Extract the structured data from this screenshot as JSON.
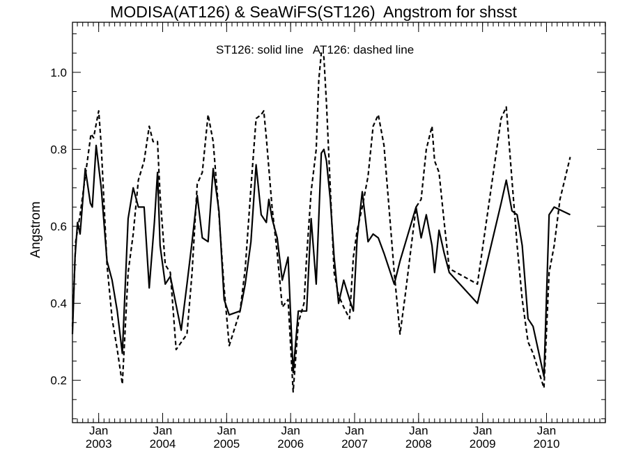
{
  "chart_data": {
    "type": "line",
    "title": "MODISA(AT126) & SeaWiFS(ST126)  Angstrom for shsst",
    "annotation": "ST126: solid line   AT126: dashed line",
    "ylabel": "Angstrom",
    "xlabel": "",
    "xlim": [
      2002.59,
      2010.92
    ],
    "ylim": [
      0.09,
      1.13
    ],
    "yticks": [
      0.2,
      0.4,
      0.6,
      0.8,
      1.0
    ],
    "yticklabels": [
      "0.2",
      "0.4",
      "0.6",
      "0.8",
      "1.0"
    ],
    "xticks": [
      {
        "x": 2003.0,
        "month": "Jan",
        "year": "2003"
      },
      {
        "x": 2004.0,
        "month": "Jan",
        "year": "2004"
      },
      {
        "x": 2005.0,
        "month": "Jan",
        "year": "2005"
      },
      {
        "x": 2006.0,
        "month": "Jan",
        "year": "2006"
      },
      {
        "x": 2007.0,
        "month": "Jan",
        "year": "2007"
      },
      {
        "x": 2008.0,
        "month": "Jan",
        "year": "2008"
      },
      {
        "x": 2009.0,
        "month": "Jan",
        "year": "2009"
      },
      {
        "x": 2010.0,
        "month": "Jan",
        "year": "2010"
      }
    ],
    "series": [
      {
        "name": "ST126",
        "style": "solid",
        "color": "#000000",
        "points": [
          [
            2002.59,
            0.32
          ],
          [
            2002.63,
            0.52
          ],
          [
            2002.67,
            0.61
          ],
          [
            2002.71,
            0.58
          ],
          [
            2002.79,
            0.75
          ],
          [
            2002.87,
            0.66
          ],
          [
            2002.9,
            0.65
          ],
          [
            2002.96,
            0.81
          ],
          [
            2003.04,
            0.7
          ],
          [
            2003.13,
            0.51
          ],
          [
            2003.21,
            0.46
          ],
          [
            2003.29,
            0.38
          ],
          [
            2003.37,
            0.27
          ],
          [
            2003.46,
            0.62
          ],
          [
            2003.54,
            0.7
          ],
          [
            2003.62,
            0.65
          ],
          [
            2003.71,
            0.65
          ],
          [
            2003.79,
            0.44
          ],
          [
            2003.87,
            0.61
          ],
          [
            2003.92,
            0.74
          ],
          [
            2003.96,
            0.55
          ],
          [
            2004.04,
            0.45
          ],
          [
            2004.12,
            0.47
          ],
          [
            2004.29,
            0.33
          ],
          [
            2004.38,
            0.45
          ],
          [
            2004.46,
            0.56
          ],
          [
            2004.54,
            0.68
          ],
          [
            2004.62,
            0.57
          ],
          [
            2004.71,
            0.56
          ],
          [
            2004.79,
            0.75
          ],
          [
            2004.88,
            0.64
          ],
          [
            2004.96,
            0.41
          ],
          [
            2005.04,
            0.37
          ],
          [
            2005.21,
            0.38
          ],
          [
            2005.29,
            0.45
          ],
          [
            2005.38,
            0.56
          ],
          [
            2005.46,
            0.76
          ],
          [
            2005.54,
            0.63
          ],
          [
            2005.62,
            0.61
          ],
          [
            2005.66,
            0.67
          ],
          [
            2005.71,
            0.62
          ],
          [
            2005.79,
            0.57
          ],
          [
            2005.87,
            0.46
          ],
          [
            2005.96,
            0.52
          ],
          [
            2006.04,
            0.22
          ],
          [
            2006.12,
            0.38
          ],
          [
            2006.21,
            0.38
          ],
          [
            2006.25,
            0.38
          ],
          [
            2006.32,
            0.62
          ],
          [
            2006.4,
            0.45
          ],
          [
            2006.48,
            0.79
          ],
          [
            2006.52,
            0.8
          ],
          [
            2006.56,
            0.77
          ],
          [
            2006.62,
            0.67
          ],
          [
            2006.68,
            0.52
          ],
          [
            2006.75,
            0.4
          ],
          [
            2006.83,
            0.46
          ],
          [
            2006.92,
            0.41
          ],
          [
            2006.98,
            0.38
          ],
          [
            2007.04,
            0.57
          ],
          [
            2007.12,
            0.69
          ],
          [
            2007.21,
            0.56
          ],
          [
            2007.29,
            0.58
          ],
          [
            2007.37,
            0.57
          ],
          [
            2007.46,
            0.53
          ],
          [
            2007.62,
            0.45
          ],
          [
            2007.71,
            0.51
          ],
          [
            2007.96,
            0.65
          ],
          [
            2008.04,
            0.57
          ],
          [
            2008.12,
            0.63
          ],
          [
            2008.21,
            0.55
          ],
          [
            2008.25,
            0.48
          ],
          [
            2008.32,
            0.59
          ],
          [
            2008.4,
            0.53
          ],
          [
            2008.48,
            0.48
          ],
          [
            2008.92,
            0.4
          ],
          [
            2009.29,
            0.66
          ],
          [
            2009.37,
            0.72
          ],
          [
            2009.46,
            0.64
          ],
          [
            2009.54,
            0.63
          ],
          [
            2009.62,
            0.55
          ],
          [
            2009.71,
            0.36
          ],
          [
            2009.79,
            0.34
          ],
          [
            2009.96,
            0.21
          ],
          [
            2010.04,
            0.63
          ],
          [
            2010.12,
            0.65
          ],
          [
            2010.37,
            0.63
          ]
        ]
      },
      {
        "name": "AT126",
        "style": "dashed",
        "color": "#000000",
        "points": [
          [
            2002.59,
            0.34
          ],
          [
            2002.64,
            0.56
          ],
          [
            2002.71,
            0.63
          ],
          [
            2002.79,
            0.73
          ],
          [
            2002.88,
            0.84
          ],
          [
            2002.92,
            0.83
          ],
          [
            2003.0,
            0.9
          ],
          [
            2003.04,
            0.81
          ],
          [
            2003.13,
            0.5
          ],
          [
            2003.21,
            0.36
          ],
          [
            2003.29,
            0.28
          ],
          [
            2003.37,
            0.19
          ],
          [
            2003.46,
            0.48
          ],
          [
            2003.54,
            0.58
          ],
          [
            2003.62,
            0.72
          ],
          [
            2003.71,
            0.77
          ],
          [
            2003.79,
            0.86
          ],
          [
            2003.85,
            0.82
          ],
          [
            2003.92,
            0.82
          ],
          [
            2003.96,
            0.68
          ],
          [
            2004.04,
            0.5
          ],
          [
            2004.12,
            0.48
          ],
          [
            2004.21,
            0.28
          ],
          [
            2004.38,
            0.32
          ],
          [
            2004.46,
            0.48
          ],
          [
            2004.54,
            0.71
          ],
          [
            2004.62,
            0.74
          ],
          [
            2004.71,
            0.89
          ],
          [
            2004.79,
            0.82
          ],
          [
            2004.88,
            0.63
          ],
          [
            2004.96,
            0.44
          ],
          [
            2005.04,
            0.29
          ],
          [
            2005.21,
            0.38
          ],
          [
            2005.29,
            0.49
          ],
          [
            2005.38,
            0.7
          ],
          [
            2005.46,
            0.88
          ],
          [
            2005.54,
            0.89
          ],
          [
            2005.58,
            0.9
          ],
          [
            2005.62,
            0.83
          ],
          [
            2005.71,
            0.65
          ],
          [
            2005.79,
            0.53
          ],
          [
            2005.87,
            0.39
          ],
          [
            2005.96,
            0.41
          ],
          [
            2006.04,
            0.17
          ],
          [
            2006.12,
            0.35
          ],
          [
            2006.21,
            0.4
          ],
          [
            2006.25,
            0.52
          ],
          [
            2006.32,
            0.69
          ],
          [
            2006.4,
            0.8
          ],
          [
            2006.44,
            0.98
          ],
          [
            2006.48,
            1.05
          ],
          [
            2006.52,
            1.04
          ],
          [
            2006.56,
            0.92
          ],
          [
            2006.62,
            0.7
          ],
          [
            2006.68,
            0.48
          ],
          [
            2006.75,
            0.42
          ],
          [
            2006.83,
            0.39
          ],
          [
            2006.92,
            0.36
          ],
          [
            2006.98,
            0.52
          ],
          [
            2007.04,
            0.59
          ],
          [
            2007.12,
            0.65
          ],
          [
            2007.21,
            0.73
          ],
          [
            2007.29,
            0.86
          ],
          [
            2007.37,
            0.89
          ],
          [
            2007.46,
            0.81
          ],
          [
            2007.62,
            0.48
          ],
          [
            2007.71,
            0.32
          ],
          [
            2007.79,
            0.42
          ],
          [
            2007.96,
            0.65
          ],
          [
            2008.04,
            0.67
          ],
          [
            2008.12,
            0.8
          ],
          [
            2008.21,
            0.86
          ],
          [
            2008.25,
            0.77
          ],
          [
            2008.32,
            0.74
          ],
          [
            2008.4,
            0.61
          ],
          [
            2008.48,
            0.49
          ],
          [
            2008.92,
            0.45
          ],
          [
            2009.29,
            0.88
          ],
          [
            2009.37,
            0.91
          ],
          [
            2009.46,
            0.72
          ],
          [
            2009.54,
            0.55
          ],
          [
            2009.62,
            0.41
          ],
          [
            2009.71,
            0.3
          ],
          [
            2009.79,
            0.27
          ],
          [
            2009.96,
            0.18
          ],
          [
            2010.04,
            0.48
          ],
          [
            2010.12,
            0.55
          ],
          [
            2010.21,
            0.67
          ],
          [
            2010.37,
            0.78
          ]
        ]
      }
    ]
  }
}
